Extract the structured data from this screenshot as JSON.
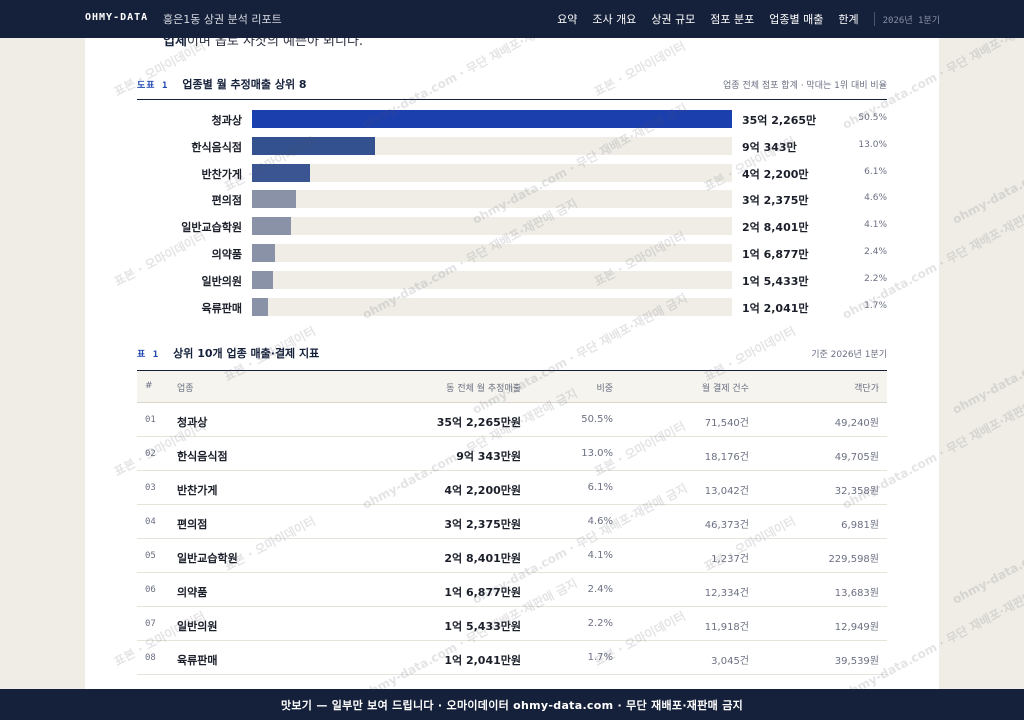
{
  "nav": {
    "brand": "OHMY-DATA",
    "report_title": "홍은1동 상권 분석 리포트",
    "items": [
      "요약",
      "조사 개요",
      "상권 규모",
      "점포 분포",
      "업종별 매출",
      "한계"
    ],
    "period": "2026년 1분기"
  },
  "intro": {
    "bold": "업체",
    "text": "이며 옵로 사삿의 예쁜아 뵈니다."
  },
  "figure": {
    "code": "도표 1",
    "title": "업종별 월 추정매출 상위 8",
    "note": "업종 전체 점포 합계 · 막대는 1위 대비 비율"
  },
  "chart_data": {
    "type": "bar",
    "orientation": "horizontal",
    "title": "업종별 월 추정매출 상위 8",
    "categories": [
      "청과상",
      "한식음식점",
      "반찬가게",
      "편의점",
      "일반교습학원",
      "의약품",
      "일반의원",
      "육류판매"
    ],
    "values": [
      352265,
      90343,
      42200,
      32375,
      28401,
      16877,
      15433,
      12041
    ],
    "value_labels": [
      "35억 2,265만",
      "9억 343만",
      "4억 2,200만",
      "3억 2,375만",
      "2억 8,401만",
      "1억 6,877만",
      "1억 5,433만",
      "1억 2,041만"
    ],
    "shares": [
      "50.5%",
      "13.0%",
      "6.1%",
      "4.6%",
      "4.1%",
      "2.4%",
      "2.2%",
      "1.7%"
    ],
    "unit": "만원",
    "colors": [
      "#1c3fae",
      "#33508f",
      "#3a5592",
      "#8a92a8",
      "#8a92a8",
      "#8a92a8",
      "#8a92a8",
      "#8a92a8"
    ]
  },
  "table": {
    "code": "표 1",
    "title": "상위 10개 업종 매출·결제 지표",
    "note": "기준 2026년 1분기",
    "headers": [
      "#",
      "업종",
      "동 전체 월 추정매출",
      "비중",
      "월 결제 건수",
      "객단가"
    ],
    "rows": [
      {
        "idx": "01",
        "name": "청과상",
        "sales": "35억 2,265만원",
        "share": "50.5%",
        "count": "71,540건",
        "avg": "49,240원"
      },
      {
        "idx": "02",
        "name": "한식음식점",
        "sales": "9억 343만원",
        "share": "13.0%",
        "count": "18,176건",
        "avg": "49,705원"
      },
      {
        "idx": "03",
        "name": "반찬가게",
        "sales": "4억 2,200만원",
        "share": "6.1%",
        "count": "13,042건",
        "avg": "32,358원"
      },
      {
        "idx": "04",
        "name": "편의점",
        "sales": "3억 2,375만원",
        "share": "4.6%",
        "count": "46,373건",
        "avg": "6,981원"
      },
      {
        "idx": "05",
        "name": "일반교습학원",
        "sales": "2억 8,401만원",
        "share": "4.1%",
        "count": "1,237건",
        "avg": "229,598원"
      },
      {
        "idx": "06",
        "name": "의약품",
        "sales": "1억 6,877만원",
        "share": "2.4%",
        "count": "12,334건",
        "avg": "13,683원"
      },
      {
        "idx": "07",
        "name": "일반의원",
        "sales": "1억 5,433만원",
        "share": "2.2%",
        "count": "11,918건",
        "avg": "12,949원"
      },
      {
        "idx": "08",
        "name": "육류판매",
        "sales": "1억 2,041만원",
        "share": "1.7%",
        "count": "3,045건",
        "avg": "39,539원"
      }
    ]
  },
  "watermark": {
    "text_a": "표본 · 오마이데이터",
    "text_b": "ohmy-data.com · 무단 재배포·재판매 금지"
  },
  "footer": {
    "text": "맛보기 — 일부만 보여 드립니다 · 오마이데이터 ohmy-data.com · 무단 재배포·재판매 금지"
  }
}
